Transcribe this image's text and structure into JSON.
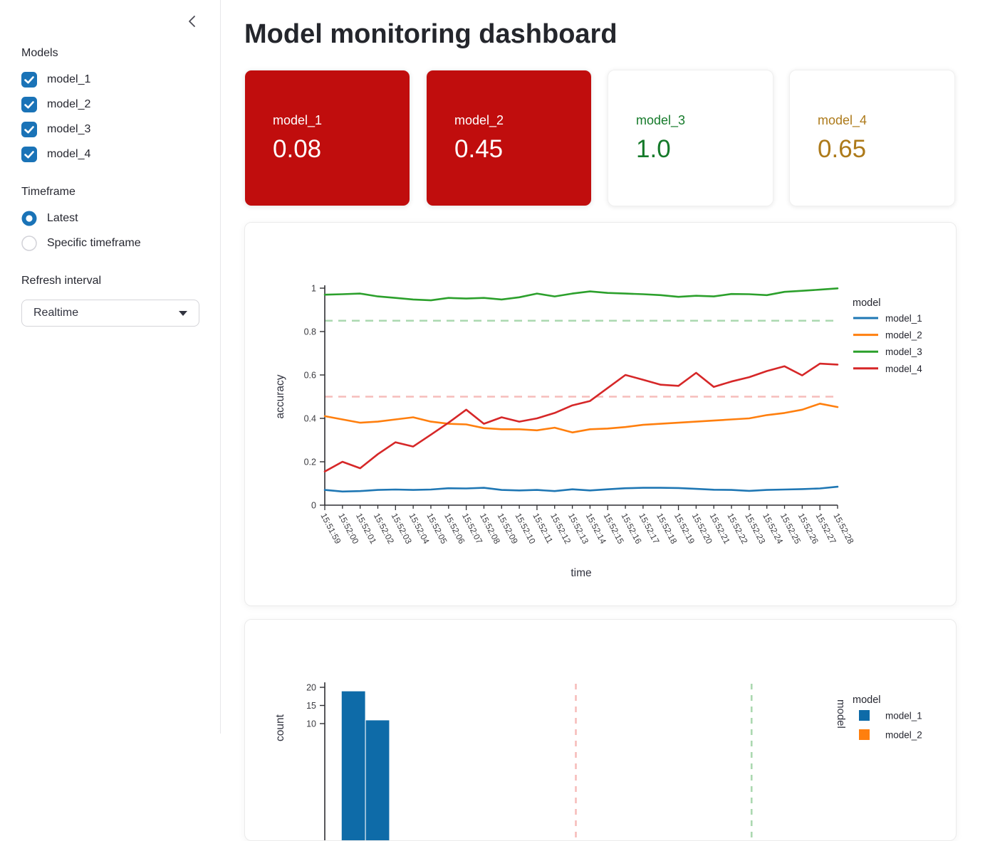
{
  "theme": {
    "primary": "#1a73b7",
    "alert_bg": "#c00d0d",
    "ok_text": "#157a2a",
    "warn_text": "#ad7a1a",
    "axis_line": "#2f2f33",
    "tick_text": "#3b3b40",
    "axis_title_text": "#31333f"
  },
  "sidebar": {
    "models_label": "Models",
    "model_checkboxes": [
      {
        "label": "model_1",
        "checked": true
      },
      {
        "label": "model_2",
        "checked": true
      },
      {
        "label": "model_3",
        "checked": true
      },
      {
        "label": "model_4",
        "checked": true
      }
    ],
    "timeframe_label": "Timeframe",
    "timeframe_options": [
      {
        "label": "Latest",
        "selected": true
      },
      {
        "label": "Specific timeframe",
        "selected": false
      }
    ],
    "refresh_label": "Refresh interval",
    "refresh_value": "Realtime"
  },
  "header": {
    "title": "Model monitoring dashboard"
  },
  "metric_cards": [
    {
      "label": "model_1",
      "value": "0.08",
      "bg": "#c00d0d",
      "text": "#ffffff",
      "shadow": true
    },
    {
      "label": "model_2",
      "value": "0.45",
      "bg": "#c00d0d",
      "text": "#ffffff",
      "shadow": true
    },
    {
      "label": "model_3",
      "value": "1.0",
      "bg": "#ffffff",
      "text": "#157a2a",
      "shadow": true
    },
    {
      "label": "model_4",
      "value": "0.65",
      "bg": "#ffffff",
      "text": "#ad7a1a",
      "shadow": true
    }
  ],
  "chart_data": [
    {
      "type": "line",
      "xlabel": "time",
      "ylabel": "accuracy",
      "ylim": [
        0,
        1
      ],
      "yticks": [
        0,
        0.2,
        0.4,
        0.6,
        0.8,
        1
      ],
      "grid": false,
      "legend_title": "model",
      "legend_position": "right",
      "thresholds": [
        {
          "value": 0.85,
          "color": "#abd8b0"
        },
        {
          "value": 0.5,
          "color": "#f6bdbb"
        }
      ],
      "x_labels": [
        "15:51:59",
        "15:52:00",
        "15:52:01",
        "15:52:02",
        "15:52:03",
        "15:52:04",
        "15:52:05",
        "15:52:06",
        "15:52:07",
        "15:52:08",
        "15:52:09",
        "15:52:10",
        "15:52:11",
        "15:52:12",
        "15:52:13",
        "15:52:14",
        "15:52:15",
        "15:52:16",
        "15:52:17",
        "15:52:18",
        "15:52:19",
        "15:52:20",
        "15:52:21",
        "15:52:22",
        "15:52:23",
        "15:52:24",
        "15:52:25",
        "15:52:26",
        "15:52:27",
        "15:52:28"
      ],
      "series": [
        {
          "name": "model_1",
          "color": "#1f77b4",
          "values": [
            0.07,
            0.063,
            0.065,
            0.07,
            0.072,
            0.07,
            0.072,
            0.078,
            0.077,
            0.08,
            0.07,
            0.068,
            0.07,
            0.065,
            0.073,
            0.068,
            0.073,
            0.078,
            0.08,
            0.08,
            0.079,
            0.075,
            0.071,
            0.07,
            0.066,
            0.07,
            0.072,
            0.074,
            0.077,
            0.085
          ]
        },
        {
          "name": "model_2",
          "color": "#ff7f0e",
          "values": [
            0.41,
            0.395,
            0.38,
            0.385,
            0.395,
            0.405,
            0.385,
            0.375,
            0.372,
            0.355,
            0.35,
            0.35,
            0.345,
            0.357,
            0.335,
            0.35,
            0.353,
            0.36,
            0.37,
            0.375,
            0.38,
            0.385,
            0.39,
            0.395,
            0.4,
            0.415,
            0.425,
            0.44,
            0.468,
            0.452
          ]
        },
        {
          "name": "model_3",
          "color": "#2ca02c",
          "values": [
            0.97,
            0.972,
            0.975,
            0.962,
            0.955,
            0.948,
            0.944,
            0.955,
            0.952,
            0.955,
            0.948,
            0.958,
            0.975,
            0.962,
            0.975,
            0.985,
            0.978,
            0.975,
            0.972,
            0.968,
            0.96,
            0.965,
            0.962,
            0.973,
            0.972,
            0.968,
            0.983,
            0.988,
            0.993,
            0.999
          ]
        },
        {
          "name": "model_4",
          "color": "#d62728",
          "values": [
            0.155,
            0.2,
            0.17,
            0.235,
            0.29,
            0.27,
            0.325,
            0.38,
            0.44,
            0.375,
            0.405,
            0.385,
            0.4,
            0.425,
            0.46,
            0.48,
            0.54,
            0.6,
            0.578,
            0.555,
            0.55,
            0.61,
            0.545,
            0.57,
            0.59,
            0.618,
            0.64,
            0.598,
            0.652,
            0.648
          ]
        }
      ]
    },
    {
      "type": "bar",
      "subtype": "histogram-faceted",
      "ylabel": "count",
      "yticks": [
        20,
        15,
        10
      ],
      "xlim": [
        0,
        1
      ],
      "facet_label": "model",
      "facet_row_visible": "model_1",
      "legend_title": "model",
      "legend_items": [
        {
          "name": "model_1",
          "color": "#0e6ba8"
        },
        {
          "name": "model_2",
          "color": "#ff7f0e"
        }
      ],
      "bar_color": "#0e6ba8",
      "bars": [
        {
          "x0": 0.033,
          "x1": 0.081,
          "count": 19
        },
        {
          "x0": 0.081,
          "x1": 0.129,
          "count": 11
        }
      ],
      "thresholds": [
        {
          "value": 0.5,
          "color": "#f6bdbb"
        },
        {
          "value": 0.85,
          "color": "#abd8b0"
        }
      ]
    }
  ]
}
